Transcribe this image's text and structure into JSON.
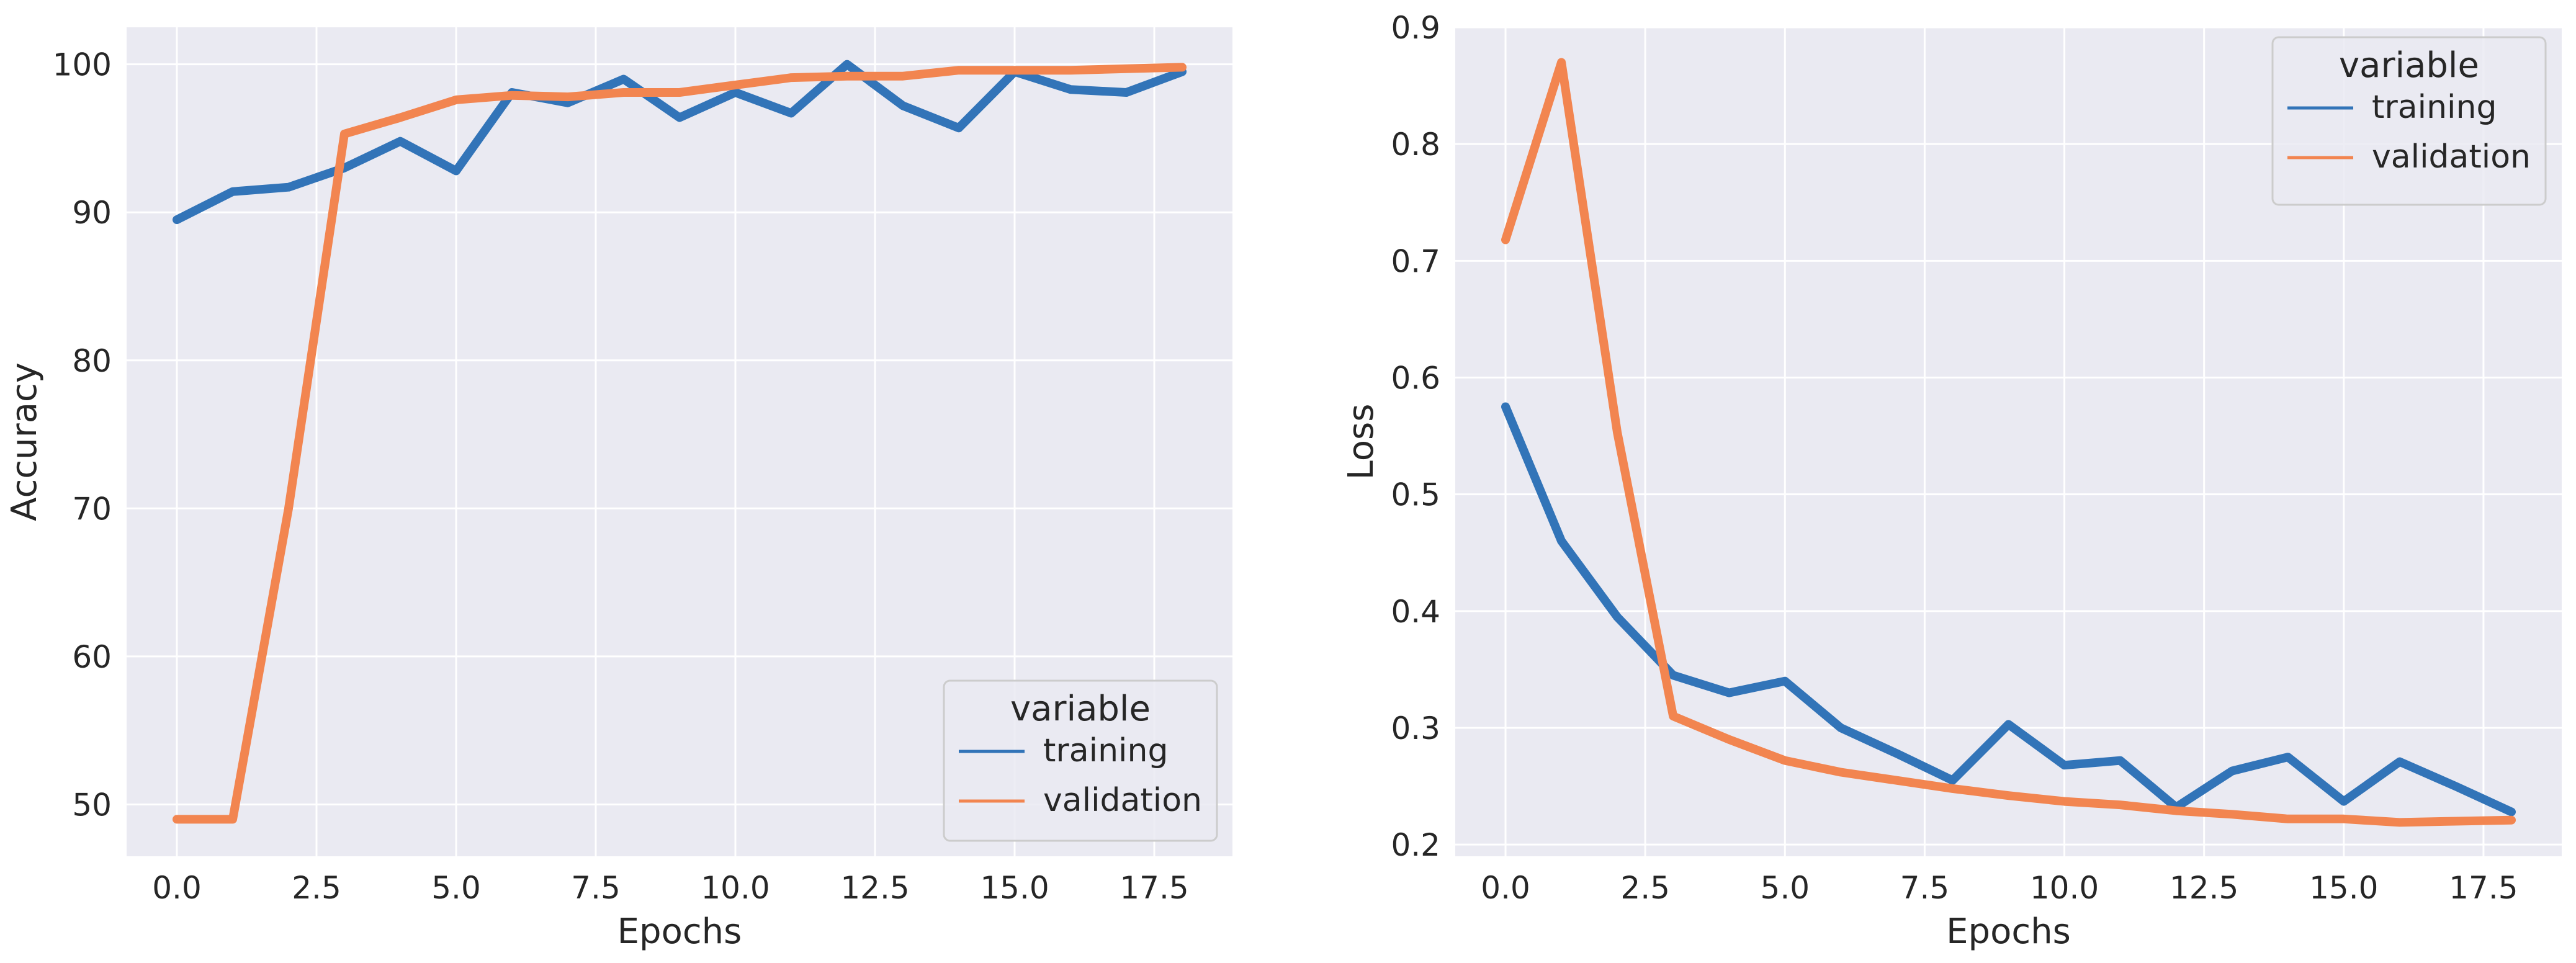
{
  "chart_data": [
    {
      "type": "line",
      "title": "",
      "xlabel": "Epochs",
      "ylabel": "Accuracy",
      "xlim": [
        -0.9,
        18.9
      ],
      "ylim": [
        46.5,
        102.5
      ],
      "xticks": [
        0.0,
        2.5,
        5.0,
        7.5,
        10.0,
        12.5,
        15.0,
        17.5
      ],
      "xtick_labels": [
        "0.0",
        "2.5",
        "5.0",
        "7.5",
        "10.0",
        "12.5",
        "15.0",
        "17.5"
      ],
      "yticks": [
        50,
        60,
        70,
        80,
        90,
        100
      ],
      "ytick_labels": [
        "50",
        "60",
        "70",
        "80",
        "90",
        "100"
      ],
      "grid": true,
      "legend": {
        "title": "variable",
        "position": "lower-right"
      },
      "series": [
        {
          "name": "training",
          "color": "#3274b8",
          "x": [
            0,
            1,
            2,
            3,
            4,
            5,
            6,
            7,
            8,
            9,
            10,
            11,
            12,
            13,
            14,
            15,
            16,
            17,
            18
          ],
          "values": [
            89.5,
            91.4,
            91.7,
            93.0,
            94.8,
            92.8,
            98.1,
            97.4,
            99.0,
            96.4,
            98.1,
            96.7,
            100.0,
            97.2,
            95.7,
            99.5,
            98.3,
            98.1,
            99.5
          ]
        },
        {
          "name": "validation",
          "color": "#f28550",
          "x": [
            0,
            1,
            2,
            3,
            4,
            5,
            6,
            7,
            8,
            9,
            10,
            11,
            12,
            13,
            14,
            15,
            16,
            17,
            18
          ],
          "values": [
            49.0,
            49.0,
            70.0,
            95.3,
            96.4,
            97.6,
            97.9,
            97.8,
            98.1,
            98.1,
            98.6,
            99.1,
            99.2,
            99.2,
            99.6,
            99.6,
            99.6,
            99.7,
            99.8
          ]
        }
      ]
    },
    {
      "type": "line",
      "title": "",
      "xlabel": "Epochs",
      "ylabel": "Loss",
      "xlim": [
        -0.9,
        18.9
      ],
      "ylim": [
        0.19,
        0.9
      ],
      "xticks": [
        0.0,
        2.5,
        5.0,
        7.5,
        10.0,
        12.5,
        15.0,
        17.5
      ],
      "xtick_labels": [
        "0.0",
        "2.5",
        "5.0",
        "7.5",
        "10.0",
        "12.5",
        "15.0",
        "17.5"
      ],
      "yticks": [
        0.2,
        0.3,
        0.4,
        0.5,
        0.6,
        0.7,
        0.8,
        0.9
      ],
      "ytick_labels": [
        "0.2",
        "0.3",
        "0.4",
        "0.5",
        "0.6",
        "0.7",
        "0.8",
        "0.9"
      ],
      "grid": true,
      "legend": {
        "title": "variable",
        "position": "upper-right"
      },
      "series": [
        {
          "name": "training",
          "color": "#3274b8",
          "x": [
            0,
            1,
            2,
            3,
            4,
            5,
            6,
            7,
            8,
            9,
            10,
            11,
            12,
            13,
            14,
            15,
            16,
            17,
            18
          ],
          "values": [
            0.575,
            0.46,
            0.395,
            0.345,
            0.33,
            0.34,
            0.3,
            0.278,
            0.255,
            0.303,
            0.268,
            0.272,
            0.232,
            0.263,
            0.275,
            0.237,
            0.271,
            0.25,
            0.228
          ]
        },
        {
          "name": "validation",
          "color": "#f28550",
          "x": [
            0,
            1,
            2,
            3,
            4,
            5,
            6,
            7,
            8,
            9,
            10,
            11,
            12,
            13,
            14,
            15,
            16,
            17,
            18
          ],
          "values": [
            0.718,
            0.87,
            0.553,
            0.31,
            0.29,
            0.272,
            0.262,
            0.255,
            0.248,
            0.242,
            0.237,
            0.234,
            0.229,
            0.226,
            0.222,
            0.222,
            0.219,
            0.22,
            0.221
          ]
        }
      ]
    }
  ],
  "colors": {
    "plot_background": "#eaeaf2",
    "grid": "#ffffff",
    "text": "#262626",
    "legend_background": "#eaeaf2",
    "legend_border": "#cccccc"
  }
}
